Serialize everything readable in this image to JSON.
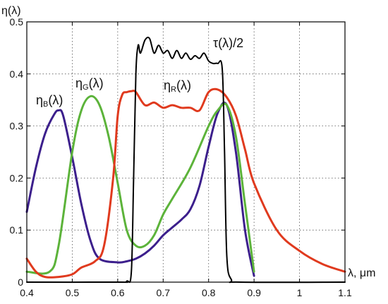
{
  "chart_data": {
    "type": "line",
    "xlabel": "λ, μm",
    "ylabel": "η(λ)",
    "xlim": [
      0.4,
      1.1
    ],
    "ylim": [
      0,
      0.5
    ],
    "x_ticks": [
      "0.4",
      "0.5",
      "0.6",
      "0.7",
      "0.8",
      "0.9",
      "1",
      "1.1"
    ],
    "y_ticks": [
      "0",
      "0.1",
      "0.2",
      "0.3",
      "0.4",
      "0.5"
    ],
    "grid": true,
    "series": [
      {
        "name": "ηB(λ)",
        "label_main": "η",
        "label_sub": "B",
        "label_tail": "(λ)",
        "color": "#3c1f8c",
        "x": [
          0.4,
          0.42,
          0.44,
          0.46,
          0.47,
          0.48,
          0.5,
          0.52,
          0.54,
          0.56,
          0.6,
          0.62,
          0.64,
          0.66,
          0.68,
          0.7,
          0.72,
          0.74,
          0.76,
          0.78,
          0.8,
          0.82,
          0.84,
          0.86,
          0.88,
          0.9
        ],
        "y": [
          0.135,
          0.22,
          0.285,
          0.322,
          0.33,
          0.32,
          0.24,
          0.15,
          0.08,
          0.045,
          0.038,
          0.04,
          0.045,
          0.055,
          0.07,
          0.09,
          0.105,
          0.12,
          0.14,
          0.185,
          0.26,
          0.325,
          0.34,
          0.25,
          0.1,
          0.012
        ]
      },
      {
        "name": "ηG(λ)",
        "label_main": "η",
        "label_sub": "G",
        "label_tail": "(λ)",
        "color": "#5cb33a",
        "x": [
          0.4,
          0.45,
          0.47,
          0.5,
          0.52,
          0.54,
          0.56,
          0.58,
          0.6,
          0.62,
          0.64,
          0.66,
          0.68,
          0.7,
          0.72,
          0.76,
          0.8,
          0.82,
          0.84,
          0.86,
          0.88,
          0.9
        ],
        "y": [
          0.02,
          0.02,
          0.07,
          0.25,
          0.33,
          0.357,
          0.34,
          0.28,
          0.19,
          0.1,
          0.07,
          0.07,
          0.09,
          0.13,
          0.16,
          0.22,
          0.3,
          0.33,
          0.34,
          0.28,
          0.15,
          0.02
        ]
      },
      {
        "name": "ηR(λ)",
        "label_main": "η",
        "label_sub": "R",
        "label_tail": "(λ)",
        "color": "#e03a1e",
        "x": [
          0.4,
          0.42,
          0.44,
          0.47,
          0.5,
          0.52,
          0.55,
          0.57,
          0.59,
          0.6,
          0.61,
          0.62,
          0.63,
          0.64,
          0.66,
          0.68,
          0.7,
          0.72,
          0.74,
          0.76,
          0.78,
          0.8,
          0.82,
          0.84,
          0.86,
          0.88,
          0.9,
          0.95,
          1.0,
          1.05,
          1.1
        ],
        "y": [
          0.045,
          0.02,
          0.01,
          0.01,
          0.015,
          0.028,
          0.04,
          0.07,
          0.2,
          0.32,
          0.36,
          0.365,
          0.367,
          0.365,
          0.34,
          0.345,
          0.335,
          0.34,
          0.335,
          0.335,
          0.33,
          0.365,
          0.37,
          0.355,
          0.32,
          0.255,
          0.19,
          0.1,
          0.06,
          0.035,
          0.02
        ]
      },
      {
        "name": "τ(λ)/2",
        "label_main": "τ(λ)/2",
        "label_sub": "",
        "label_tail": "",
        "color": "#000000",
        "x": [
          0.4,
          0.6,
          0.62,
          0.63,
          0.635,
          0.64,
          0.645,
          0.65,
          0.66,
          0.67,
          0.68,
          0.69,
          0.7,
          0.71,
          0.72,
          0.73,
          0.74,
          0.75,
          0.76,
          0.77,
          0.78,
          0.79,
          0.8,
          0.81,
          0.82,
          0.83,
          0.835,
          0.84,
          0.85,
          0.87,
          1.1
        ],
        "y": [
          0.0,
          0.0,
          0.002,
          0.02,
          0.2,
          0.4,
          0.455,
          0.44,
          0.465,
          0.468,
          0.44,
          0.455,
          0.44,
          0.445,
          0.43,
          0.445,
          0.43,
          0.44,
          0.428,
          0.435,
          0.43,
          0.44,
          0.425,
          0.42,
          0.42,
          0.41,
          0.25,
          0.05,
          0.005,
          0.0,
          0.0
        ]
      }
    ]
  }
}
